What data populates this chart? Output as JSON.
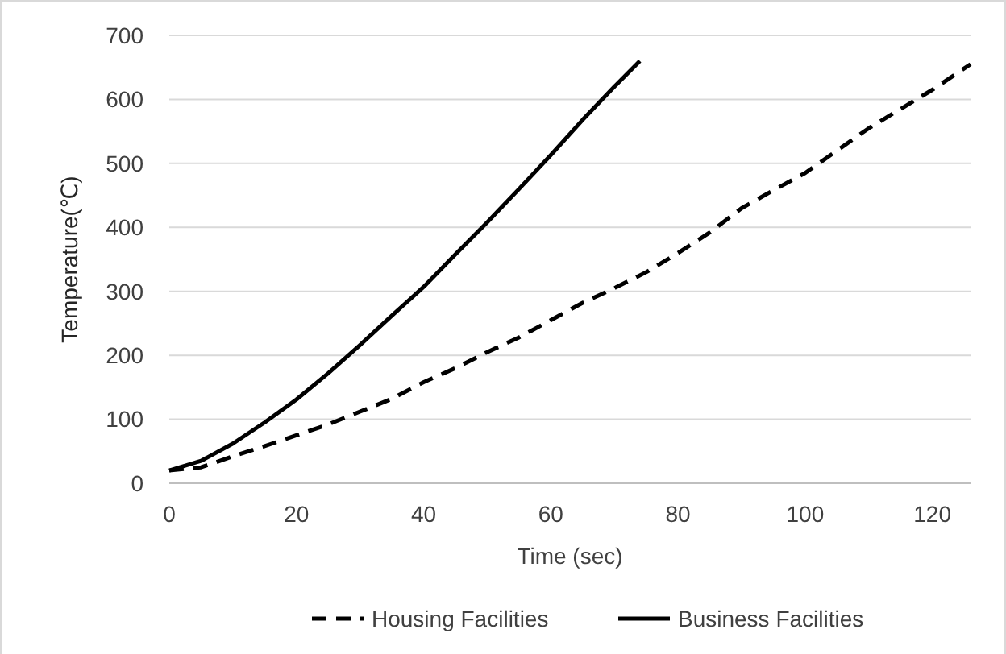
{
  "chart_data": {
    "type": "line",
    "xlabel": "Time (sec)",
    "ylabel": "Temperature(℃)",
    "xlim": [
      0,
      126
    ],
    "xticks": [
      0,
      20,
      40,
      60,
      80,
      100,
      120
    ],
    "ylim": [
      0,
      700
    ],
    "yticks": [
      0,
      100,
      200,
      300,
      400,
      500,
      600,
      700
    ],
    "grid": "y",
    "legend": "bottom",
    "series": [
      {
        "name": "Housing Facilities",
        "color": "#000000",
        "line_style": "dashed",
        "x": [
          0,
          5,
          10,
          15,
          20,
          25,
          30,
          35,
          40,
          45,
          50,
          55,
          60,
          65,
          70,
          75,
          80,
          85,
          90,
          95,
          100,
          105,
          110,
          115,
          120,
          126
        ],
        "values": [
          20,
          25,
          42,
          58,
          75,
          92,
          112,
          132,
          158,
          180,
          205,
          228,
          255,
          282,
          305,
          330,
          360,
          392,
          430,
          458,
          485,
          520,
          555,
          585,
          615,
          655
        ]
      },
      {
        "name": "Business Facilities",
        "color": "#000000",
        "line_style": "solid",
        "x": [
          0,
          5,
          10,
          15,
          20,
          25,
          30,
          35,
          40,
          45,
          50,
          55,
          60,
          65,
          70,
          74
        ],
        "values": [
          20,
          35,
          62,
          95,
          131,
          172,
          216,
          262,
          307,
          358,
          408,
          460,
          513,
          568,
          620,
          660
        ]
      }
    ]
  }
}
